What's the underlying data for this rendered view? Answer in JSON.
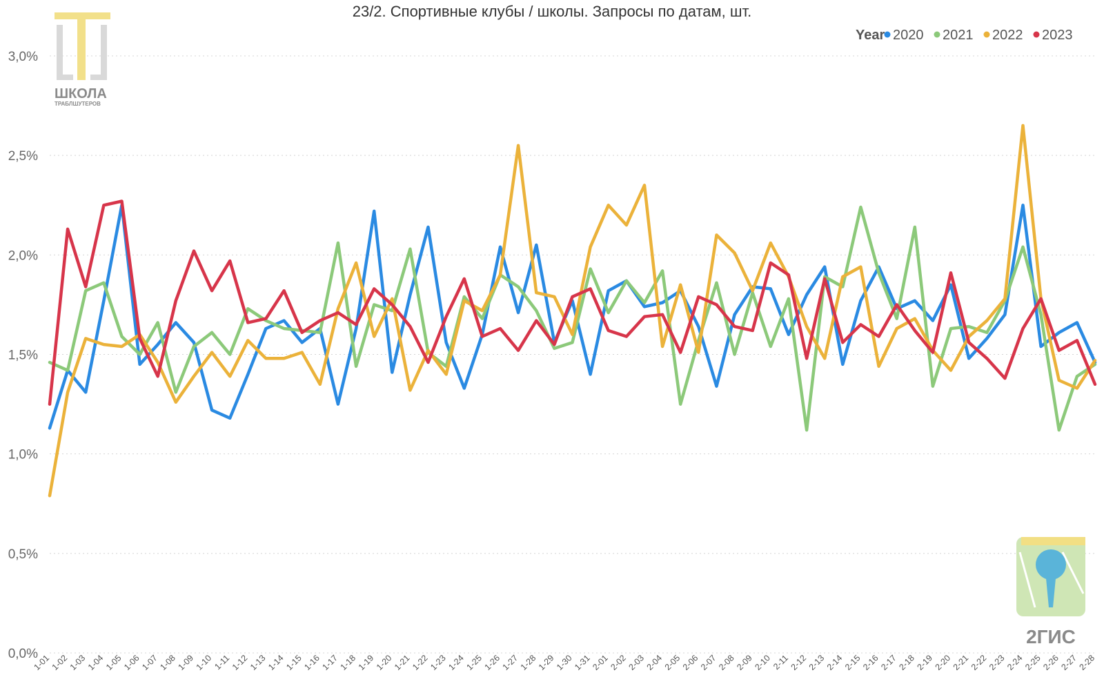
{
  "chart_data": {
    "type": "line",
    "title": "23/2. Спортивные клубы / школы. Запросы по датам, шт.",
    "legend_title": "Year",
    "legend_position": "top-right",
    "grid": true,
    "ylim": [
      0,
      3.0
    ],
    "yticks": [
      {
        "value": 0.0,
        "label": "0,0%"
      },
      {
        "value": 0.5,
        "label": "0,5%"
      },
      {
        "value": 1.0,
        "label": "1,0%"
      },
      {
        "value": 1.5,
        "label": "1,5%"
      },
      {
        "value": 2.0,
        "label": "2,0%"
      },
      {
        "value": 2.5,
        "label": "2,5%"
      },
      {
        "value": 3.0,
        "label": "3,0%"
      }
    ],
    "x": [
      "1-01",
      "1-02",
      "1-03",
      "1-04",
      "1-05",
      "1-06",
      "1-07",
      "1-08",
      "1-09",
      "1-10",
      "1-11",
      "1-12",
      "1-13",
      "1-14",
      "1-15",
      "1-16",
      "1-17",
      "1-18",
      "1-19",
      "1-20",
      "1-21",
      "1-22",
      "1-23",
      "1-24",
      "1-25",
      "1-26",
      "1-27",
      "1-28",
      "1-29",
      "1-30",
      "1-31",
      "2-01",
      "2-02",
      "2-03",
      "2-04",
      "2-05",
      "2-06",
      "2-07",
      "2-08",
      "2-09",
      "2-10",
      "2-11",
      "2-12",
      "2-13",
      "2-14",
      "2-15",
      "2-16",
      "2-17",
      "2-18",
      "2-19",
      "2-20",
      "2-21",
      "2-22",
      "2-23",
      "2-24",
      "2-25",
      "2-26",
      "2-27",
      "2-28"
    ],
    "series": [
      {
        "name": "2020",
        "color": "#2a8ae2",
        "values": [
          1.13,
          1.42,
          1.31,
          1.77,
          2.25,
          1.45,
          1.55,
          1.66,
          1.56,
          1.22,
          1.18,
          1.4,
          1.63,
          1.67,
          1.56,
          1.63,
          1.25,
          1.63,
          2.22,
          1.41,
          1.8,
          2.14,
          1.56,
          1.33,
          1.6,
          2.04,
          1.71,
          2.05,
          1.56,
          1.77,
          1.4,
          1.82,
          1.87,
          1.74,
          1.76,
          1.82,
          1.64,
          1.34,
          1.7,
          1.84,
          1.83,
          1.6,
          1.8,
          1.94,
          1.45,
          1.77,
          1.94,
          1.73,
          1.77,
          1.67,
          1.85,
          1.48,
          1.58,
          1.7,
          2.25,
          1.54,
          1.61,
          1.66,
          1.46
        ]
      },
      {
        "name": "2021",
        "color": "#8cc97a",
        "values": [
          1.46,
          1.42,
          1.82,
          1.86,
          1.59,
          1.5,
          1.66,
          1.31,
          1.54,
          1.61,
          1.5,
          1.73,
          1.67,
          1.63,
          1.62,
          1.61,
          2.06,
          1.44,
          1.75,
          1.72,
          2.03,
          1.51,
          1.44,
          1.79,
          1.68,
          1.9,
          1.84,
          1.72,
          1.53,
          1.56,
          1.93,
          1.71,
          1.87,
          1.76,
          1.92,
          1.25,
          1.57,
          1.86,
          1.5,
          1.81,
          1.54,
          1.78,
          1.12,
          1.89,
          1.84,
          2.24,
          1.91,
          1.68,
          2.14,
          1.34,
          1.63,
          1.64,
          1.61,
          1.77,
          2.04,
          1.7,
          1.12,
          1.39,
          1.45
        ]
      },
      {
        "name": "2022",
        "color": "#ebb23a",
        "values": [
          0.79,
          1.31,
          1.58,
          1.55,
          1.54,
          1.6,
          1.46,
          1.26,
          1.39,
          1.51,
          1.39,
          1.57,
          1.48,
          1.48,
          1.51,
          1.35,
          1.73,
          1.96,
          1.59,
          1.78,
          1.32,
          1.52,
          1.4,
          1.77,
          1.72,
          1.9,
          2.55,
          1.81,
          1.79,
          1.6,
          2.04,
          2.25,
          2.15,
          2.35,
          1.54,
          1.85,
          1.51,
          2.1,
          2.01,
          1.82,
          2.06,
          1.89,
          1.64,
          1.48,
          1.89,
          1.94,
          1.44,
          1.63,
          1.68,
          1.52,
          1.42,
          1.59,
          1.67,
          1.78,
          2.65,
          1.78,
          1.37,
          1.33,
          1.47
        ]
      },
      {
        "name": "2023",
        "color": "#d7354a",
        "values": [
          1.25,
          2.13,
          1.84,
          2.25,
          2.27,
          1.58,
          1.39,
          1.77,
          2.02,
          1.82,
          1.97,
          1.66,
          1.68,
          1.82,
          1.61,
          1.67,
          1.71,
          1.65,
          1.83,
          1.75,
          1.64,
          1.46,
          1.69,
          1.88,
          1.59,
          1.63,
          1.52,
          1.67,
          1.55,
          1.79,
          1.83,
          1.62,
          1.59,
          1.69,
          1.7,
          1.51,
          1.79,
          1.75,
          1.64,
          1.62,
          1.96,
          1.9,
          1.48,
          1.88,
          1.56,
          1.65,
          1.59,
          1.75,
          1.62,
          1.51,
          1.91,
          1.56,
          1.48,
          1.38,
          1.63,
          1.78,
          1.52,
          1.57,
          1.35
        ]
      }
    ]
  },
  "logos": {
    "top_left": {
      "name": "ШКОЛА",
      "subtitle": "ТРАБЛШУТЕРОВ"
    },
    "bottom_right": {
      "name": "2ГИС"
    }
  }
}
